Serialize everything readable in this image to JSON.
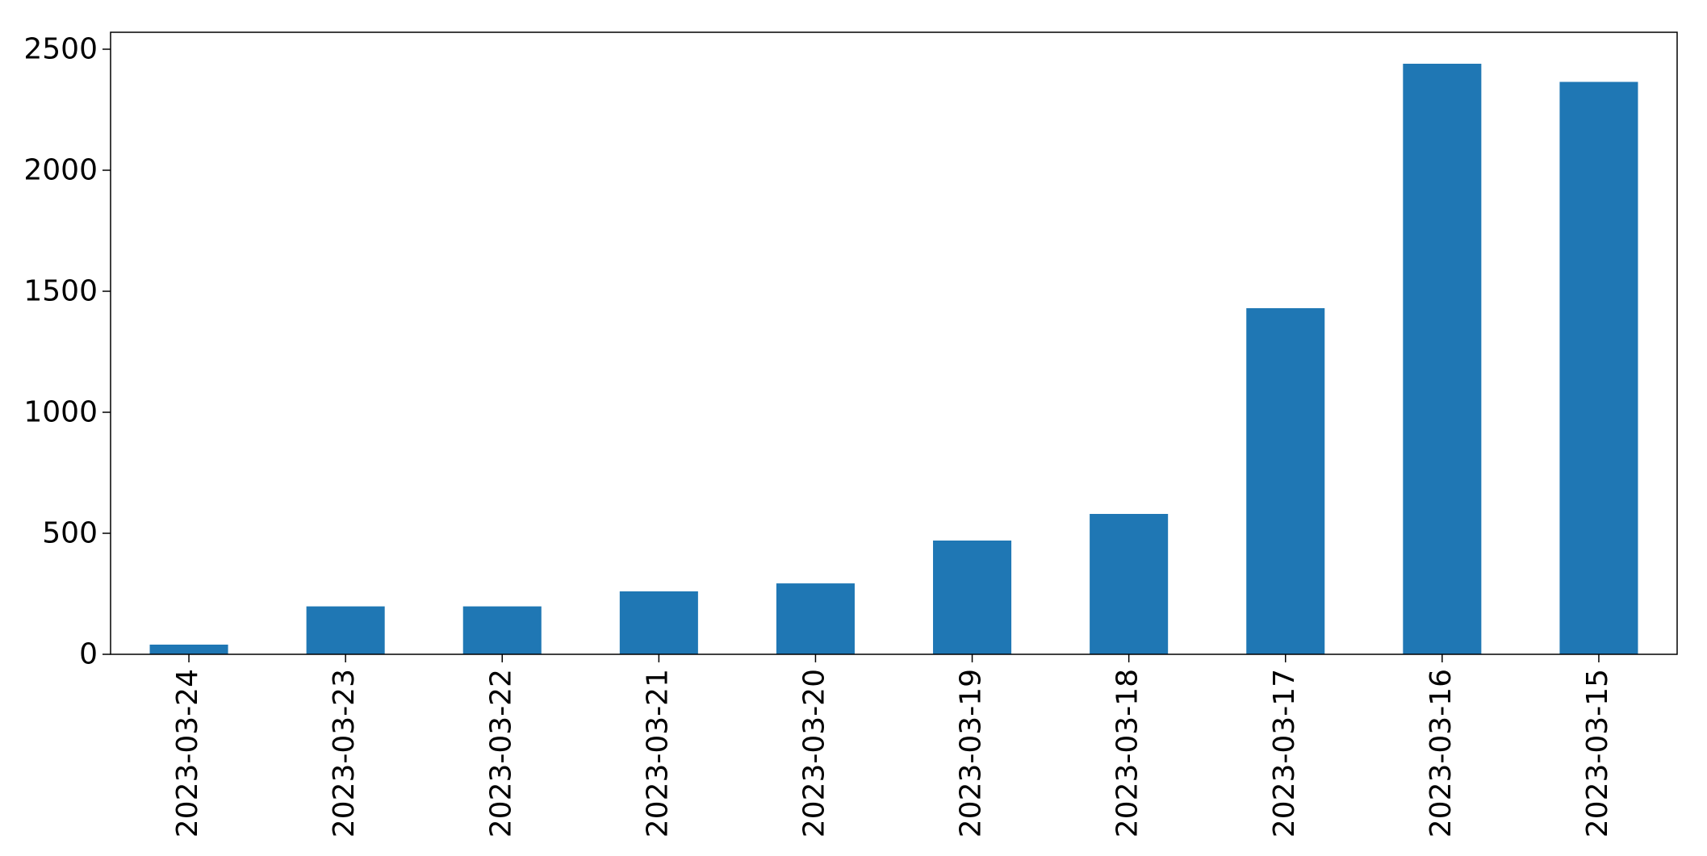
{
  "chart_data": {
    "type": "bar",
    "title": "",
    "xlabel": "",
    "ylabel": "",
    "categories": [
      "2023-03-24",
      "2023-03-23",
      "2023-03-22",
      "2023-03-21",
      "2023-03-20",
      "2023-03-19",
      "2023-03-18",
      "2023-03-17",
      "2023-03-16",
      "2023-03-15"
    ],
    "values": [
      40,
      198,
      198,
      260,
      293,
      470,
      580,
      1430,
      2440,
      2365
    ],
    "ylim": [
      0,
      2570
    ],
    "yticks": [
      0,
      500,
      1000,
      1500,
      2000,
      2500
    ],
    "grid": false,
    "legend": "none",
    "bar_color": "#1f77b4",
    "axis_color": "#000000"
  }
}
